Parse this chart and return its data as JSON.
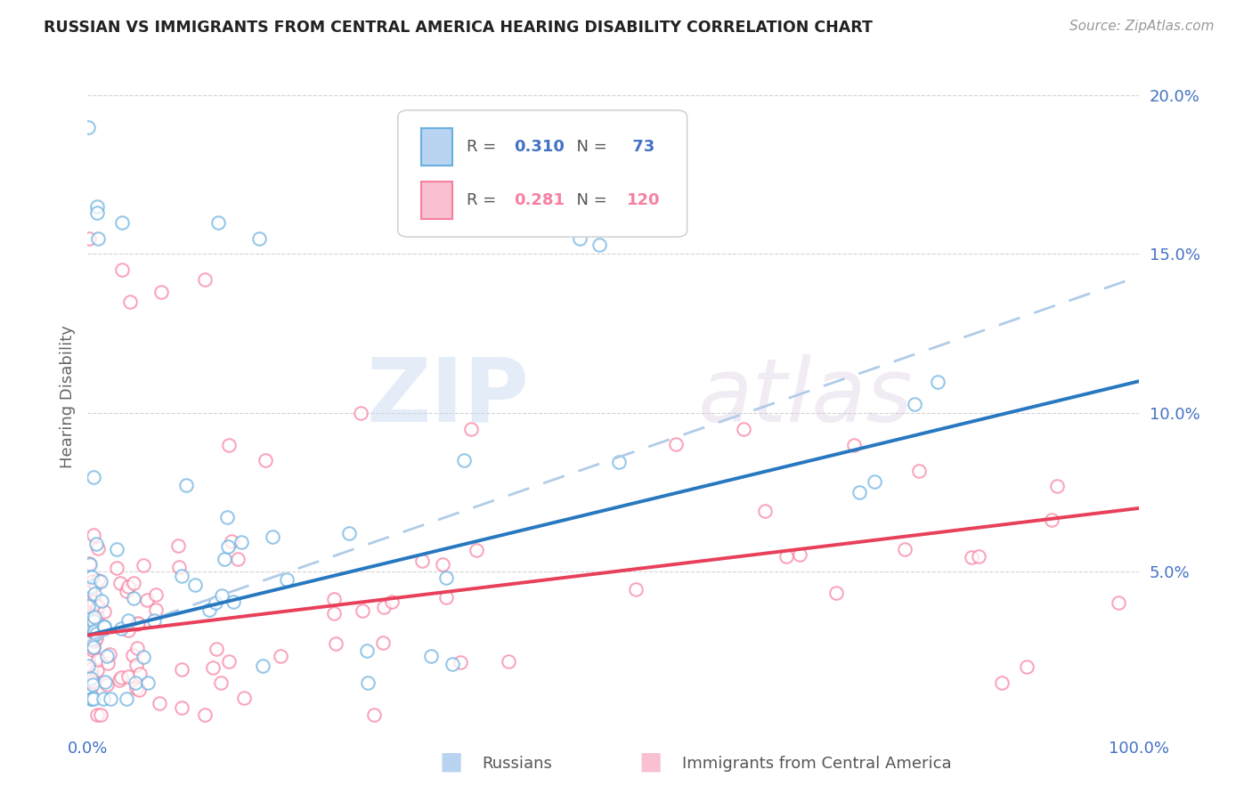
{
  "title": "RUSSIAN VS IMMIGRANTS FROM CENTRAL AMERICA HEARING DISABILITY CORRELATION CHART",
  "source": "Source: ZipAtlas.com",
  "ylabel": "Hearing Disability",
  "watermark": "ZIPatlas",
  "blue_R": "0.310",
  "blue_N": "73",
  "pink_R": "0.281",
  "pink_N": "120",
  "blue_line_intercept": 3.0,
  "blue_line_slope": 0.08,
  "pink_line_intercept": 3.0,
  "pink_line_slope": 0.04,
  "dashed_line_intercept": 2.8,
  "dashed_line_slope": 0.115,
  "background_color": "#ffffff",
  "blue_color": "#6ab0e0",
  "pink_color": "#f780a0",
  "blue_line_color": "#2878c0",
  "pink_line_color": "#e8405a",
  "dashed_color": "#b0cce8",
  "grid_color": "#c8c8c8",
  "axis_color": "#4472c4",
  "title_color": "#222222",
  "watermark_color": "#d0e0f0",
  "ylim": [
    0,
    21
  ],
  "xlim": [
    0,
    100
  ],
  "yticks": [
    5,
    10,
    15,
    20
  ],
  "xticks": [
    0,
    100
  ]
}
